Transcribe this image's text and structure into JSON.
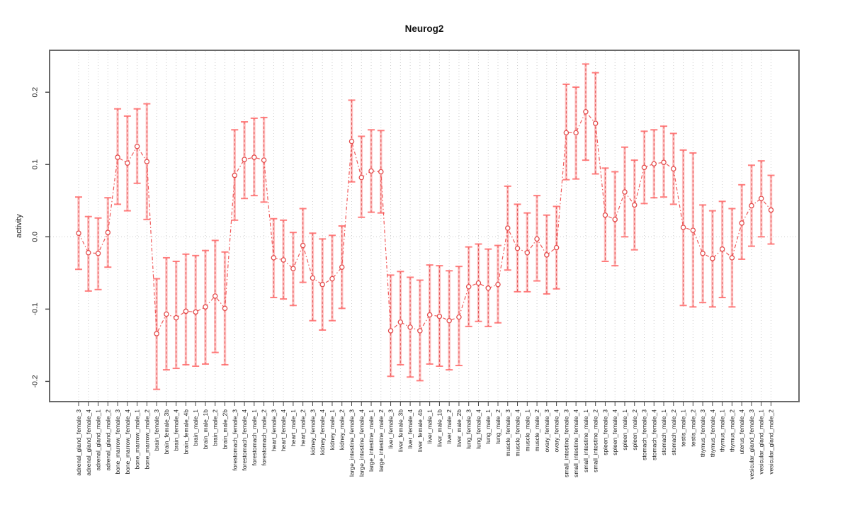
{
  "title": "Neurog2",
  "chart_data": {
    "type": "line",
    "title": "Neurog2",
    "xlabel": "",
    "ylabel": "activity",
    "ylim": [
      -0.228,
      0.258
    ],
    "yticks": [
      -0.2,
      -0.1,
      0.0,
      0.1,
      0.2
    ],
    "ytick_labels": [
      "-0.2",
      "-0.1",
      "0.0",
      "0.1",
      "0.2"
    ],
    "grid": "vertical-dotted",
    "zero_line_dotted": true,
    "legend": "none",
    "error_bars": true,
    "categories": [
      "adrenal_gland_female_3",
      "adrenal_gland_female_4",
      "adrenal_gland_male_1",
      "adrenal_gland_male_2",
      "bone_marrow_female_3",
      "bone_marrow_female_4",
      "bone_marrow_male_1",
      "bone_marrow_male_2",
      "brain_female_3",
      "brain_female_3b",
      "brain_female_4",
      "brain_female_4b",
      "brain_male_1",
      "brain_male_1b",
      "brain_male_2",
      "brain_male_2b",
      "forestomach_female_3",
      "forestomach_female_4",
      "forestomach_male_1",
      "forestomach_male_2",
      "heart_female_3",
      "heart_female_4",
      "heart_male_1",
      "heart_male_2",
      "kidney_female_3",
      "kidney_female_4",
      "kidney_male_1",
      "kidney_male_2",
      "large_intestine_female_3",
      "large_intestine_female_4",
      "large_intestine_male_1",
      "large_intestine_male_2",
      "liver_female_3",
      "liver_female_3b",
      "liver_female_4",
      "liver_female_4b",
      "liver_male_1",
      "liver_male_1b",
      "liver_male_2",
      "liver_male_2b",
      "lung_female_3",
      "lung_female_4",
      "lung_male_1",
      "lung_male_2",
      "muscle_female_3",
      "muscle_female_4",
      "muscle_male_1",
      "muscle_male_2",
      "ovary_female_3",
      "ovary_female_4",
      "small_intestine_female_3",
      "small_intestine_female_4",
      "small_intestine_male_1",
      "small_intestine_male_2",
      "spleen_female_3",
      "spleen_female_4",
      "spleen_male_1",
      "spleen_male_2",
      "stomach_female_3",
      "stomach_female_4",
      "stomach_male_1",
      "stomach_male_2",
      "testis_male_1",
      "testis_male_2",
      "thymus_female_3",
      "thymus_female_4",
      "thymus_male_1",
      "thymus_male_2",
      "uterus_female_4",
      "vesicular_gland_female_3",
      "vesicular_gland_male_1",
      "vesicular_gland_male_2"
    ],
    "series": [
      {
        "name": "activity",
        "mean": [
          0.005,
          -0.022,
          -0.023,
          0.006,
          0.11,
          0.102,
          0.125,
          0.104,
          -0.134,
          -0.107,
          -0.112,
          -0.103,
          -0.104,
          -0.097,
          -0.082,
          -0.099,
          0.085,
          0.107,
          0.11,
          0.106,
          -0.029,
          -0.032,
          -0.044,
          -0.012,
          -0.057,
          -0.066,
          -0.058,
          -0.042,
          0.132,
          0.082,
          0.091,
          0.09,
          -0.13,
          -0.118,
          -0.125,
          -0.13,
          -0.108,
          -0.11,
          -0.116,
          -0.111,
          -0.069,
          -0.064,
          -0.071,
          -0.066,
          0.012,
          -0.016,
          -0.022,
          -0.003,
          -0.025,
          -0.015,
          0.144,
          0.144,
          0.173,
          0.157,
          0.03,
          0.024,
          0.062,
          0.044,
          0.096,
          0.101,
          0.103,
          0.094,
          0.013,
          0.009,
          -0.023,
          -0.03,
          -0.017,
          -0.029,
          0.019,
          0.043,
          0.053,
          0.037
        ],
        "lower": [
          -0.045,
          -0.075,
          -0.073,
          -0.042,
          0.045,
          0.036,
          0.074,
          0.024,
          -0.211,
          -0.184,
          -0.182,
          -0.177,
          -0.179,
          -0.176,
          -0.16,
          -0.177,
          0.023,
          0.053,
          0.057,
          0.048,
          -0.084,
          -0.086,
          -0.095,
          -0.063,
          -0.116,
          -0.129,
          -0.116,
          -0.099,
          0.076,
          0.027,
          0.034,
          0.033,
          -0.193,
          -0.177,
          -0.194,
          -0.199,
          -0.176,
          -0.179,
          -0.184,
          -0.178,
          -0.124,
          -0.117,
          -0.124,
          -0.119,
          -0.046,
          -0.076,
          -0.076,
          -0.061,
          -0.079,
          -0.072,
          0.079,
          0.08,
          0.106,
          0.087,
          -0.034,
          -0.04,
          0.0,
          -0.018,
          0.046,
          0.054,
          0.055,
          0.045,
          -0.095,
          -0.097,
          -0.091,
          -0.097,
          -0.084,
          -0.097,
          -0.031,
          -0.013,
          0.0,
          -0.01
        ],
        "upper": [
          0.055,
          0.028,
          0.026,
          0.054,
          0.177,
          0.167,
          0.177,
          0.184,
          -0.058,
          -0.029,
          -0.034,
          -0.024,
          -0.026,
          -0.019,
          -0.005,
          -0.021,
          0.148,
          0.159,
          0.164,
          0.165,
          0.025,
          0.023,
          0.006,
          0.039,
          0.005,
          -0.003,
          0.002,
          0.015,
          0.189,
          0.139,
          0.148,
          0.147,
          -0.053,
          -0.048,
          -0.056,
          -0.06,
          -0.039,
          -0.04,
          -0.047,
          -0.041,
          -0.014,
          -0.01,
          -0.017,
          -0.012,
          0.07,
          0.045,
          0.033,
          0.057,
          0.03,
          0.042,
          0.211,
          0.207,
          0.239,
          0.227,
          0.095,
          0.09,
          0.124,
          0.106,
          0.146,
          0.148,
          0.153,
          0.143,
          0.12,
          0.116,
          0.044,
          0.036,
          0.049,
          0.039,
          0.072,
          0.099,
          0.105,
          0.085
        ]
      }
    ],
    "colors": {
      "error_band": "rgba(255,130,130,0.50)",
      "error_dash": "#e05252",
      "error_cap": "rgba(255,105,105,0.85)",
      "line": "#f05858",
      "marker_stroke": "#e34c4c",
      "marker_fill": "#ffffff",
      "grid": "#cccccc",
      "axis_box": "#696969",
      "tick": "#444444",
      "text": "#1a1a1a"
    }
  }
}
